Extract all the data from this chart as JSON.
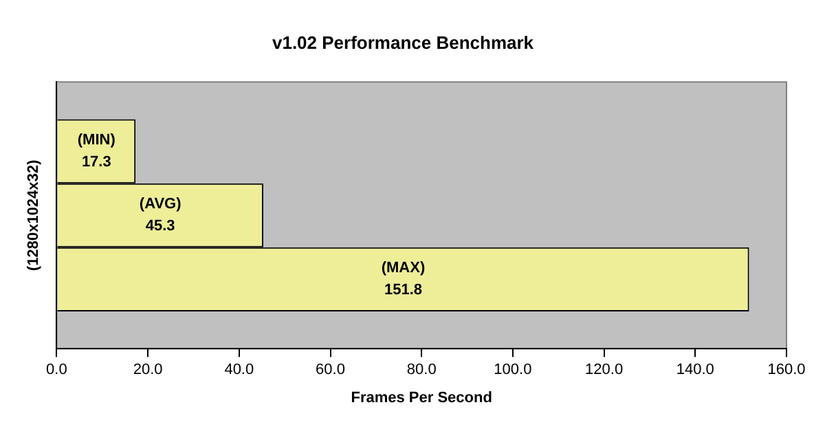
{
  "chart_data": {
    "type": "bar",
    "orientation": "horizontal",
    "title": "v1.02 Performance Benchmark",
    "xlabel": "Frames Per Second",
    "ylabel": "(1280x1024x32)",
    "categories": [
      null
    ],
    "series": [
      {
        "name": "(MIN)",
        "color": "#eeee99",
        "values": [
          17.3
        ]
      },
      {
        "name": "(AVG)",
        "color": "#eeee99",
        "values": [
          45.3
        ]
      },
      {
        "name": "(MAX)",
        "color": "#eeee99",
        "values": [
          151.8
        ]
      }
    ],
    "xlim": [
      0,
      160
    ],
    "xticks": [
      {
        "value": 0,
        "label": "0.0"
      },
      {
        "value": 20,
        "label": "20.0"
      },
      {
        "value": 40,
        "label": "40.0"
      },
      {
        "value": 60,
        "label": "60.0"
      },
      {
        "value": 80,
        "label": "80.0"
      },
      {
        "value": 100,
        "label": "100.0"
      },
      {
        "value": 120,
        "label": "120.0"
      },
      {
        "value": 140,
        "label": "140.0"
      },
      {
        "value": 160,
        "label": "160.0"
      }
    ],
    "data_labels": true,
    "legend": false,
    "grid": false
  }
}
